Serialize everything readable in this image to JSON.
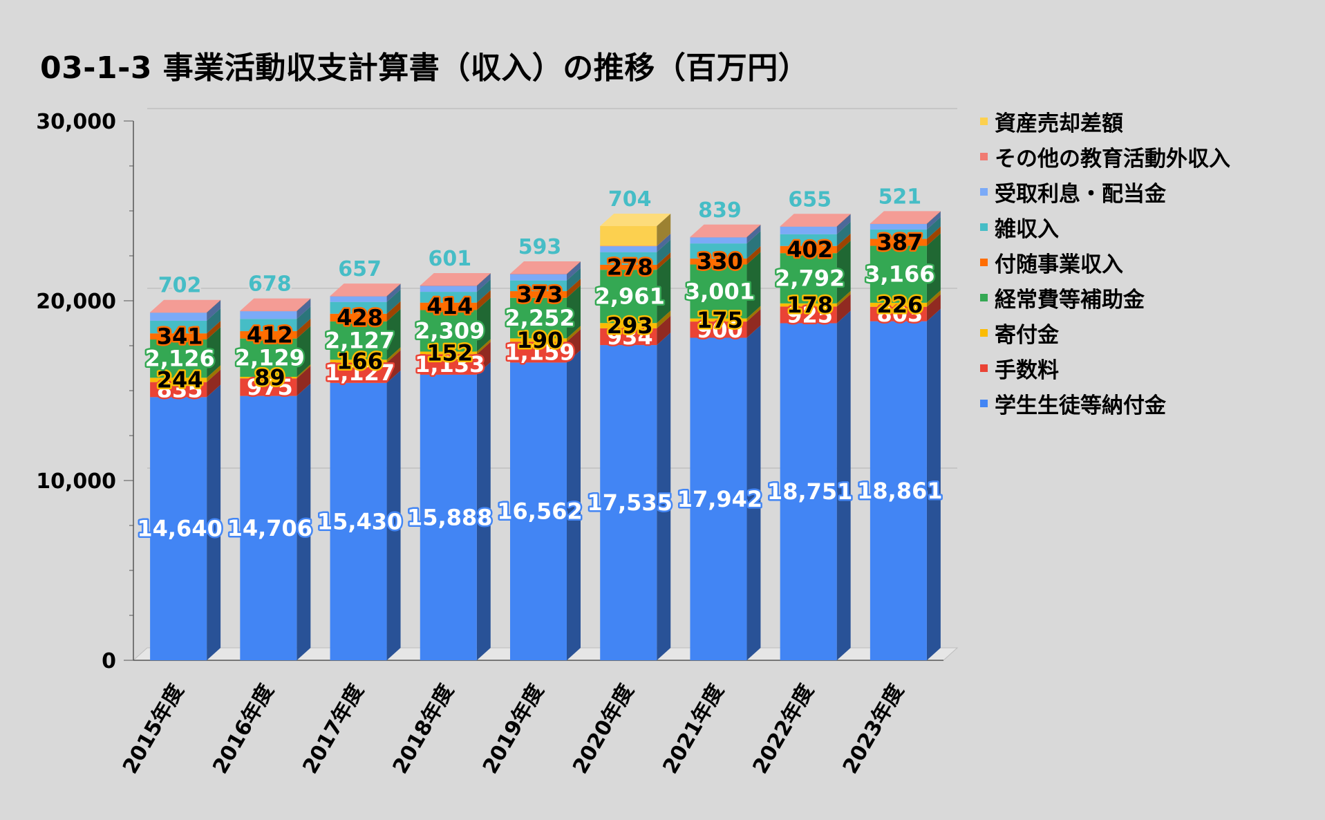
{
  "title": "03-1-3 事業活動収支計算書（収入）の推移（百万円）",
  "chart_data": {
    "type": "bar",
    "stacked": true,
    "title": "03-1-3 事業活動収支計算書（収入）の推移（百万円）",
    "categories": [
      "2015年度",
      "2016年度",
      "2017年度",
      "2018年度",
      "2019年度",
      "2020年度",
      "2021年度",
      "2022年度",
      "2023年度"
    ],
    "ylim": [
      0,
      30000
    ],
    "yticks": [
      "0",
      "10,000",
      "20,000",
      "30,000"
    ],
    "grid": true,
    "legend_position": "right",
    "series": [
      {
        "name": "学生生徒等納付金",
        "color": "#4285f4",
        "label_color": "#ffffff",
        "label_stroke": "#4285f4",
        "values": [
          14640,
          14706,
          15430,
          15888,
          16562,
          17535,
          17942,
          18751,
          18861
        ],
        "labels": [
          "14,640",
          "14,706",
          "15,430",
          "15,888",
          "16,562",
          "17,535",
          "17,942",
          "18,751",
          "18,861"
        ]
      },
      {
        "name": "手数料",
        "color": "#ea4335",
        "label_color": "#ffffff",
        "label_stroke": "#ea4335",
        "values": [
          835,
          975,
          1127,
          1133,
          1159,
          934,
          900,
          925,
          803
        ],
        "labels": [
          "835",
          "975",
          "1,127",
          "1,133",
          "1,159",
          "934",
          "900",
          "925",
          "803"
        ]
      },
      {
        "name": "寄付金",
        "color": "#fbbc04",
        "label_color": "#000000",
        "label_stroke": "#fbbc04",
        "values": [
          244,
          89,
          166,
          152,
          190,
          293,
          175,
          178,
          226
        ],
        "labels": [
          "244",
          "89",
          "166",
          "152",
          "190",
          "293",
          "175",
          "178",
          "226"
        ]
      },
      {
        "name": "経常費等補助金",
        "color": "#34a853",
        "label_color": "#ffffff",
        "label_stroke": "#34a853",
        "values": [
          2126,
          2129,
          2127,
          2309,
          2252,
          2961,
          3001,
          2792,
          3166
        ],
        "labels": [
          "2,126",
          "2,129",
          "2,127",
          "2,309",
          "2,252",
          "2,961",
          "3,001",
          "2,792",
          "3,166"
        ]
      },
      {
        "name": "付随事業収入",
        "color": "#ff6d01",
        "label_color": "#000000",
        "label_stroke": "#ff6d01",
        "values": [
          341,
          412,
          428,
          414,
          373,
          278,
          330,
          402,
          387
        ],
        "labels": [
          "341",
          "412",
          "428",
          "414",
          "373",
          "278",
          "330",
          "402",
          "387"
        ]
      },
      {
        "name": "雑収入",
        "color": "#46bdc6",
        "label_color": "#46bdc6",
        "label_stroke": "#d9d9d9",
        "values": [
          702,
          678,
          657,
          601,
          593,
          704,
          839,
          655,
          521
        ],
        "labels": [
          "702",
          "678",
          "657",
          "601",
          "593",
          "704",
          "839",
          "655",
          "521"
        ]
      },
      {
        "name": "受取利息・配当金",
        "color": "#7baaf7",
        "values": [
          450,
          430,
          310,
          330,
          350,
          330,
          340,
          420,
          310
        ]
      },
      {
        "name": "その他の教育活動外収入",
        "color": "#f07b72",
        "values": [
          20,
          20,
          20,
          20,
          20,
          20,
          20,
          20,
          20
        ]
      },
      {
        "name": "資産売却差額",
        "color": "#fcd04f",
        "values": [
          0,
          0,
          0,
          0,
          0,
          1100,
          0,
          0,
          0
        ]
      }
    ]
  },
  "legend_order": [
    "資産売却差額",
    "その他の教育活動外収入",
    "受取利息・配当金",
    "雑収入",
    "付随事業収入",
    "経常費等補助金",
    "寄付金",
    "手数料",
    "学生生徒等納付金"
  ]
}
